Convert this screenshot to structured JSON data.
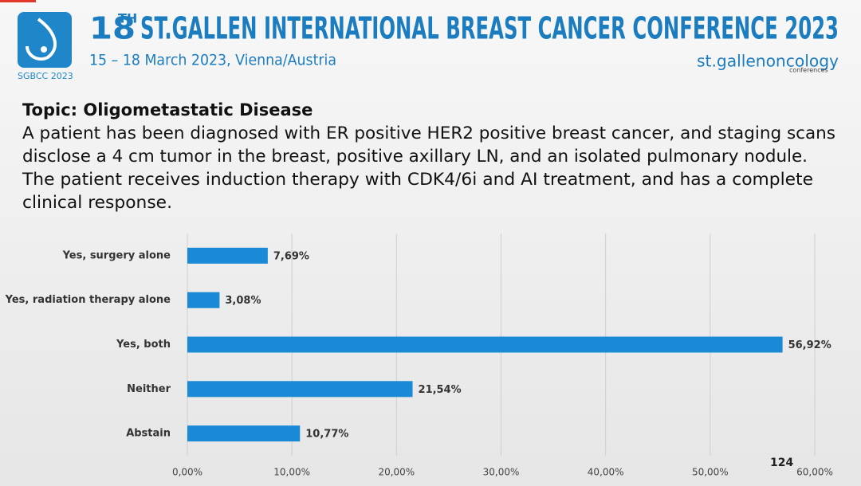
{
  "header": {
    "title_number": "18",
    "title_sup": "TH",
    "title_rest": "ST.GALLEN INTERNATIONAL BREAST CANCER CONFERENCE 2023",
    "subtitle": "15 – 18 March 2023, Vienna/Austria",
    "logo_text": "SGBCC 2023",
    "brand": "st.gallenoncology",
    "brand_sub": "conferences"
  },
  "topic": "Topic: Oligometastatic Disease",
  "question_lines": [
    "A patient has been diagnosed with ER positive HER2 positive breast cancer, and staging scans",
    "disclose a 4 cm tumor in the breast, positive axillary LN, and an isolated pulmonary nodule.",
    "The patient receives induction therapy with CDK4/6i and AI treatment, and has a complete",
    "clinical response."
  ],
  "slide_number": "124",
  "chart_data": {
    "type": "hbar",
    "categories": [
      "Yes, surgery alone",
      "Yes, radiation therapy alone",
      "Yes, both",
      "Neither",
      "Abstain"
    ],
    "values": [
      7.69,
      3.08,
      56.92,
      21.54,
      10.77
    ],
    "value_labels": [
      "7,69%",
      "3,08%",
      "56,92%",
      "21,54%",
      "10,77%"
    ],
    "color": "#1a8ad6",
    "xlim": [
      0,
      60
    ],
    "xticks": [
      {
        "value": 0,
        "label": "0,00%"
      },
      {
        "value": 10,
        "label": "10,00%"
      },
      {
        "value": 20,
        "label": "20,00%"
      },
      {
        "value": 30,
        "label": "30,00%"
      },
      {
        "value": 40,
        "label": "40,00%"
      },
      {
        "value": 50,
        "label": "50,00%"
      },
      {
        "value": 60,
        "label": "60,00%"
      }
    ],
    "grid": true
  }
}
